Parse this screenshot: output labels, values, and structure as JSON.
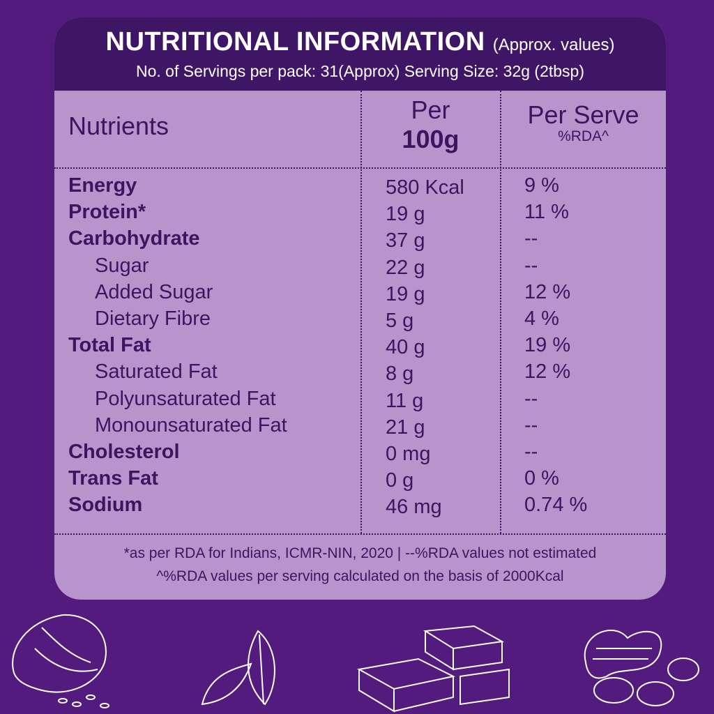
{
  "header": {
    "title": "NUTRITIONAL INFORMATION",
    "title_note": "(Approx. values)",
    "servings": "No. of Servings per pack: 31(Approx)  Serving Size: 32g (2tbsp)"
  },
  "table": {
    "columns": {
      "nutrients": "Nutrients",
      "per_100g_line1": "Per",
      "per_100g_line2": "100g",
      "per_serve": "Per Serve",
      "per_serve_sub": "%RDA^"
    },
    "rows": [
      {
        "nutrient": "Energy",
        "per_100g": "580 Kcal",
        "per_serve": "9 %",
        "sub": false
      },
      {
        "nutrient": "Protein*",
        "per_100g": "19 g",
        "per_serve": "11 %",
        "sub": false
      },
      {
        "nutrient": "Carbohydrate",
        "per_100g": "37 g",
        "per_serve": "--",
        "sub": false
      },
      {
        "nutrient": "Sugar",
        "per_100g": "22 g",
        "per_serve": "--",
        "sub": true
      },
      {
        "nutrient": "Added Sugar",
        "per_100g": "19 g",
        "per_serve": "12 %",
        "sub": true
      },
      {
        "nutrient": "Dietary Fibre",
        "per_100g": "5 g",
        "per_serve": "4 %",
        "sub": true
      },
      {
        "nutrient": "Total Fat",
        "per_100g": "40 g",
        "per_serve": "19 %",
        "sub": false
      },
      {
        "nutrient": "Saturated Fat",
        "per_100g": "8 g",
        "per_serve": "12 %",
        "sub": true
      },
      {
        "nutrient": "Polyunsaturated Fat",
        "per_100g": "11 g",
        "per_serve": "--",
        "sub": true
      },
      {
        "nutrient": "Monounsaturated Fat",
        "per_100g": "21 g",
        "per_serve": "--",
        "sub": true
      },
      {
        "nutrient": "Cholesterol",
        "per_100g": "0 mg",
        "per_serve": "--",
        "sub": false
      },
      {
        "nutrient": "Trans Fat",
        "per_100g": "0 g",
        "per_serve": "0 %",
        "sub": false
      },
      {
        "nutrient": "Sodium",
        "per_100g": "46 mg",
        "per_serve": "0.74 %",
        "sub": false
      }
    ]
  },
  "footer": {
    "line1": "*as per RDA for Indians, ICMR-NIN, 2020  |  --%RDA values not estimated",
    "line2": "^%RDA values per serving calculated on the basis of 2000Kcal"
  }
}
